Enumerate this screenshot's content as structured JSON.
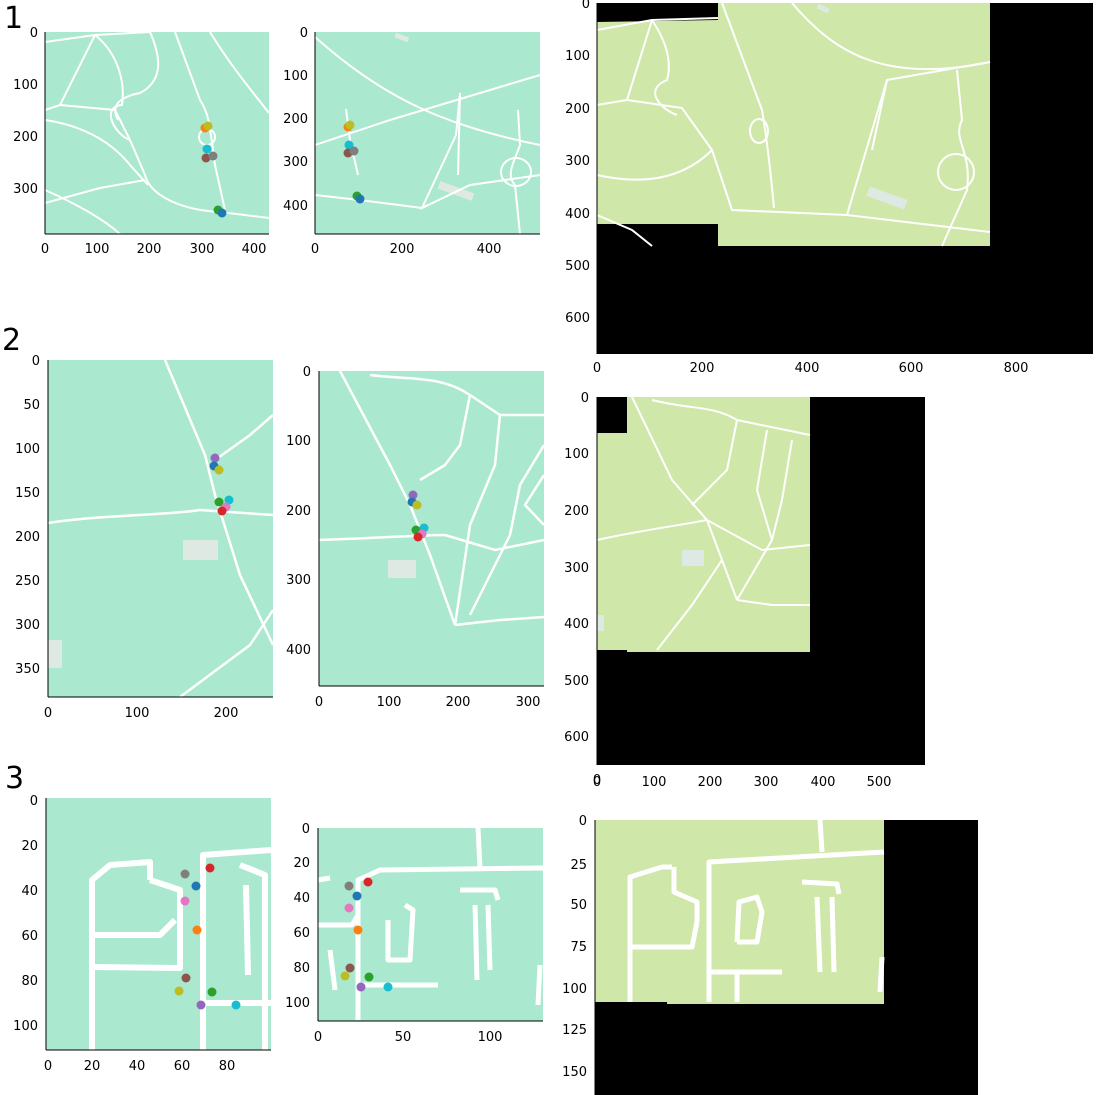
{
  "rows": [
    {
      "label": "1",
      "panels": [
        {
          "xticks": [
            "0",
            "100",
            "200",
            "300",
            "400"
          ],
          "yticks": [
            "0",
            "100",
            "200",
            "300"
          ]
        },
        {
          "xticks": [
            "0",
            "200",
            "400"
          ],
          "yticks": [
            "0",
            "100",
            "200",
            "300",
            "400"
          ]
        },
        {
          "xticks": [
            "0",
            "200",
            "400",
            "600",
            "800"
          ],
          "yticks": [
            "0",
            "100",
            "200",
            "300",
            "400",
            "500",
            "600"
          ]
        }
      ]
    },
    {
      "label": "2",
      "panels": [
        {
          "xticks": [
            "0",
            "100",
            "200"
          ],
          "yticks": [
            "0",
            "50",
            "100",
            "150",
            "200",
            "250",
            "300",
            "350"
          ]
        },
        {
          "xticks": [
            "0",
            "100",
            "200",
            "300"
          ],
          "yticks": [
            "0",
            "100",
            "200",
            "300",
            "400"
          ]
        },
        {
          "xticks": [
            "0",
            "100",
            "200",
            "300",
            "400",
            "500"
          ],
          "yticks": [
            "0",
            "100",
            "200",
            "300",
            "400",
            "500",
            "600"
          ]
        }
      ]
    },
    {
      "label": "3",
      "panels": [
        {
          "xticks": [
            "0",
            "20",
            "40",
            "60",
            "80"
          ],
          "yticks": [
            "0",
            "20",
            "40",
            "60",
            "80",
            "100"
          ]
        },
        {
          "xticks": [
            "0",
            "50",
            "100"
          ],
          "yticks": [
            "0",
            "20",
            "40",
            "60",
            "80",
            "100"
          ]
        },
        {
          "xticks": [],
          "yticks": [
            "0",
            "25",
            "50",
            "75",
            "100",
            "125",
            "150"
          ]
        }
      ]
    }
  ],
  "colors": {
    "map_fill": "#aae8cf",
    "satellite_fill": "#d0e7aa",
    "road": "#ffffff",
    "building": "#dfe9e4",
    "mask": "#000000",
    "markers": [
      "#1f77b4",
      "#ff7f0e",
      "#2ca02c",
      "#d62728",
      "#9467bd",
      "#8c564b",
      "#e377c2",
      "#7f7f7f",
      "#bcbd22",
      "#17becf"
    ]
  }
}
